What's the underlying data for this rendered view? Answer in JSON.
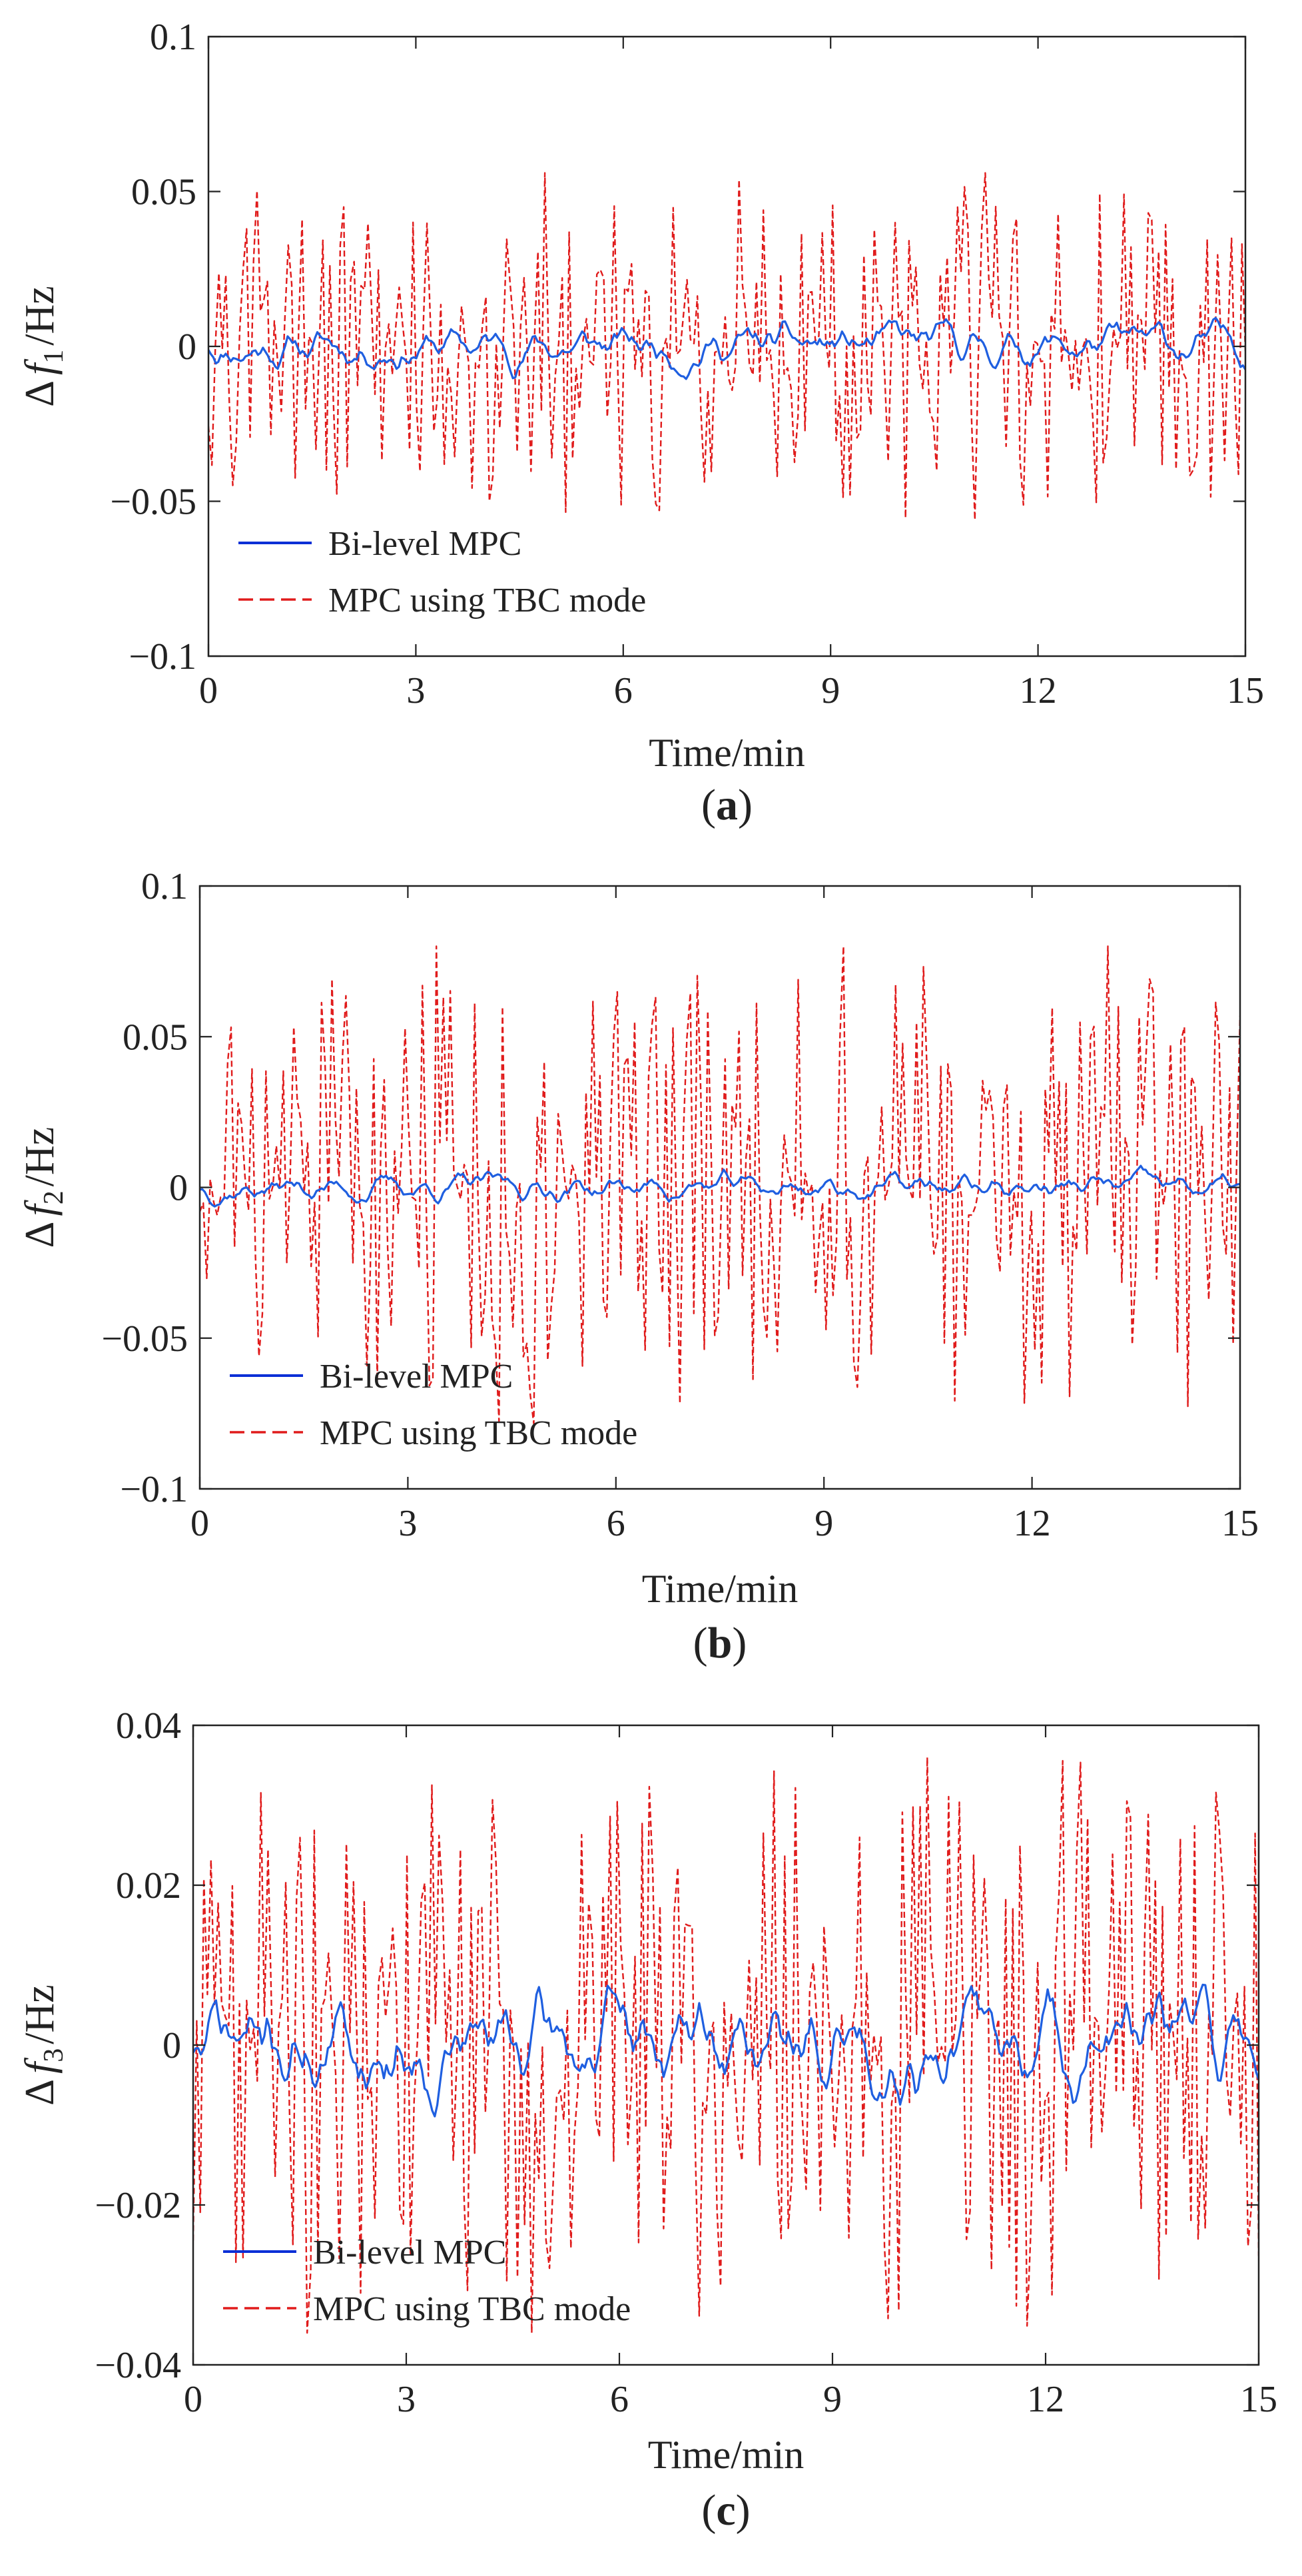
{
  "colors": {
    "bilevel": "#1f5fe0",
    "bilevel_legend": "#0b2fd6",
    "tbc": "#e01b1b",
    "axis": "#222222"
  },
  "chart_data": [
    {
      "type": "line",
      "panel_label": "(a)",
      "panel_letter": "a",
      "ylabel_delta": "Δ",
      "ylabel_f": "f",
      "ylabel_sub": "1",
      "ylabel_unit": "/Hz",
      "xlabel": "Time/min",
      "xlim": [
        0,
        15
      ],
      "ylim": [
        -0.1,
        0.1
      ],
      "xticks": [
        0,
        3,
        6,
        9,
        12,
        15
      ],
      "xtick_labels": [
        "0",
        "3",
        "6",
        "9",
        "12",
        "15"
      ],
      "yticks": [
        -0.1,
        -0.05,
        0,
        0.05,
        0.1
      ],
      "ytick_labels": [
        "−0.1",
        "−0.05",
        "0",
        "0.05",
        "0.1"
      ],
      "legend": [
        "Bi-level MPC",
        "MPC using TBC mode"
      ],
      "legend_position": "lower-left",
      "series": [
        {
          "name": "Bi-level MPC",
          "style": "solid",
          "amplitude": 0.012,
          "seed": 11,
          "points": 420
        },
        {
          "name": "MPC using TBC mode",
          "style": "dashed",
          "amplitude": 0.056,
          "seed": 23,
          "points": 300
        }
      ]
    },
    {
      "type": "line",
      "panel_label": "(b)",
      "panel_letter": "b",
      "ylabel_delta": "Δ",
      "ylabel_f": "f",
      "ylabel_sub": "2",
      "ylabel_unit": "/Hz",
      "xlabel": "Time/min",
      "xlim": [
        0,
        15
      ],
      "ylim": [
        -0.1,
        0.1
      ],
      "xticks": [
        0,
        3,
        6,
        9,
        12,
        15
      ],
      "xtick_labels": [
        "0",
        "3",
        "6",
        "9",
        "12",
        "15"
      ],
      "yticks": [
        -0.1,
        -0.05,
        0,
        0.05,
        0.1
      ],
      "ytick_labels": [
        "−0.1",
        "−0.05",
        "0",
        "0.05",
        "0.1"
      ],
      "legend": [
        "Bi-level MPC",
        "MPC using TBC mode"
      ],
      "legend_position": "lower-left",
      "series": [
        {
          "name": "Bi-level MPC",
          "style": "solid",
          "amplitude": 0.008,
          "seed": 37,
          "points": 420
        },
        {
          "name": "MPC using TBC mode",
          "style": "dashed",
          "amplitude": 0.08,
          "seed": 53,
          "points": 300
        }
      ]
    },
    {
      "type": "line",
      "panel_label": "(c)",
      "panel_letter": "c",
      "ylabel_delta": "Δ",
      "ylabel_f": "f",
      "ylabel_sub": "3",
      "ylabel_unit": "/Hz",
      "xlabel": "Time/min",
      "xlim": [
        0,
        15
      ],
      "ylim": [
        -0.04,
        0.04
      ],
      "xticks": [
        0,
        3,
        6,
        9,
        12,
        15
      ],
      "xtick_labels": [
        "0",
        "3",
        "6",
        "9",
        "12",
        "15"
      ],
      "yticks": [
        -0.04,
        -0.02,
        0,
        0.02,
        0.04
      ],
      "ytick_labels": [
        "−0.04",
        "−0.02",
        "0",
        "0.02",
        "0.04"
      ],
      "legend": [
        "Bi-level MPC",
        "MPC using TBC mode"
      ],
      "legend_position": "lower-left",
      "series": [
        {
          "name": "Bi-level MPC",
          "style": "solid",
          "amplitude": 0.011,
          "seed": 71,
          "points": 420
        },
        {
          "name": "MPC using TBC mode",
          "style": "dashed",
          "amplitude": 0.036,
          "seed": 89,
          "points": 300
        }
      ]
    }
  ]
}
